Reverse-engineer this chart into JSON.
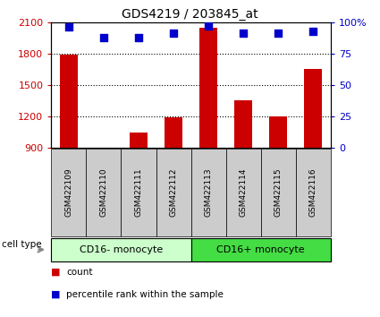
{
  "title": "GDS4219 / 203845_at",
  "samples": [
    "GSM422109",
    "GSM422110",
    "GSM422111",
    "GSM422112",
    "GSM422113",
    "GSM422114",
    "GSM422115",
    "GSM422116"
  ],
  "counts": [
    1790,
    870,
    1040,
    1190,
    2050,
    1350,
    1200,
    1650
  ],
  "percentiles": [
    96,
    88,
    88,
    91,
    97,
    91,
    91,
    93
  ],
  "groups": [
    {
      "label": "CD16- monocyte",
      "start": 0,
      "end": 4,
      "color": "#ccffcc"
    },
    {
      "label": "CD16+ monocyte",
      "start": 4,
      "end": 8,
      "color": "#44dd44"
    }
  ],
  "group_label": "cell type",
  "ylim_left": [
    900,
    2100
  ],
  "ylim_right": [
    0,
    100
  ],
  "yticks_left": [
    900,
    1200,
    1500,
    1800,
    2100
  ],
  "yticks_right": [
    0,
    25,
    50,
    75,
    100
  ],
  "bar_color": "#cc0000",
  "dot_color": "#0000cc",
  "bar_width": 0.5,
  "grid_color": "#000000",
  "bg_color_sample": "#cccccc",
  "legend_count_label": "count",
  "legend_pct_label": "percentile rank within the sample",
  "grid_yticks": [
    1200,
    1500,
    1800
  ]
}
